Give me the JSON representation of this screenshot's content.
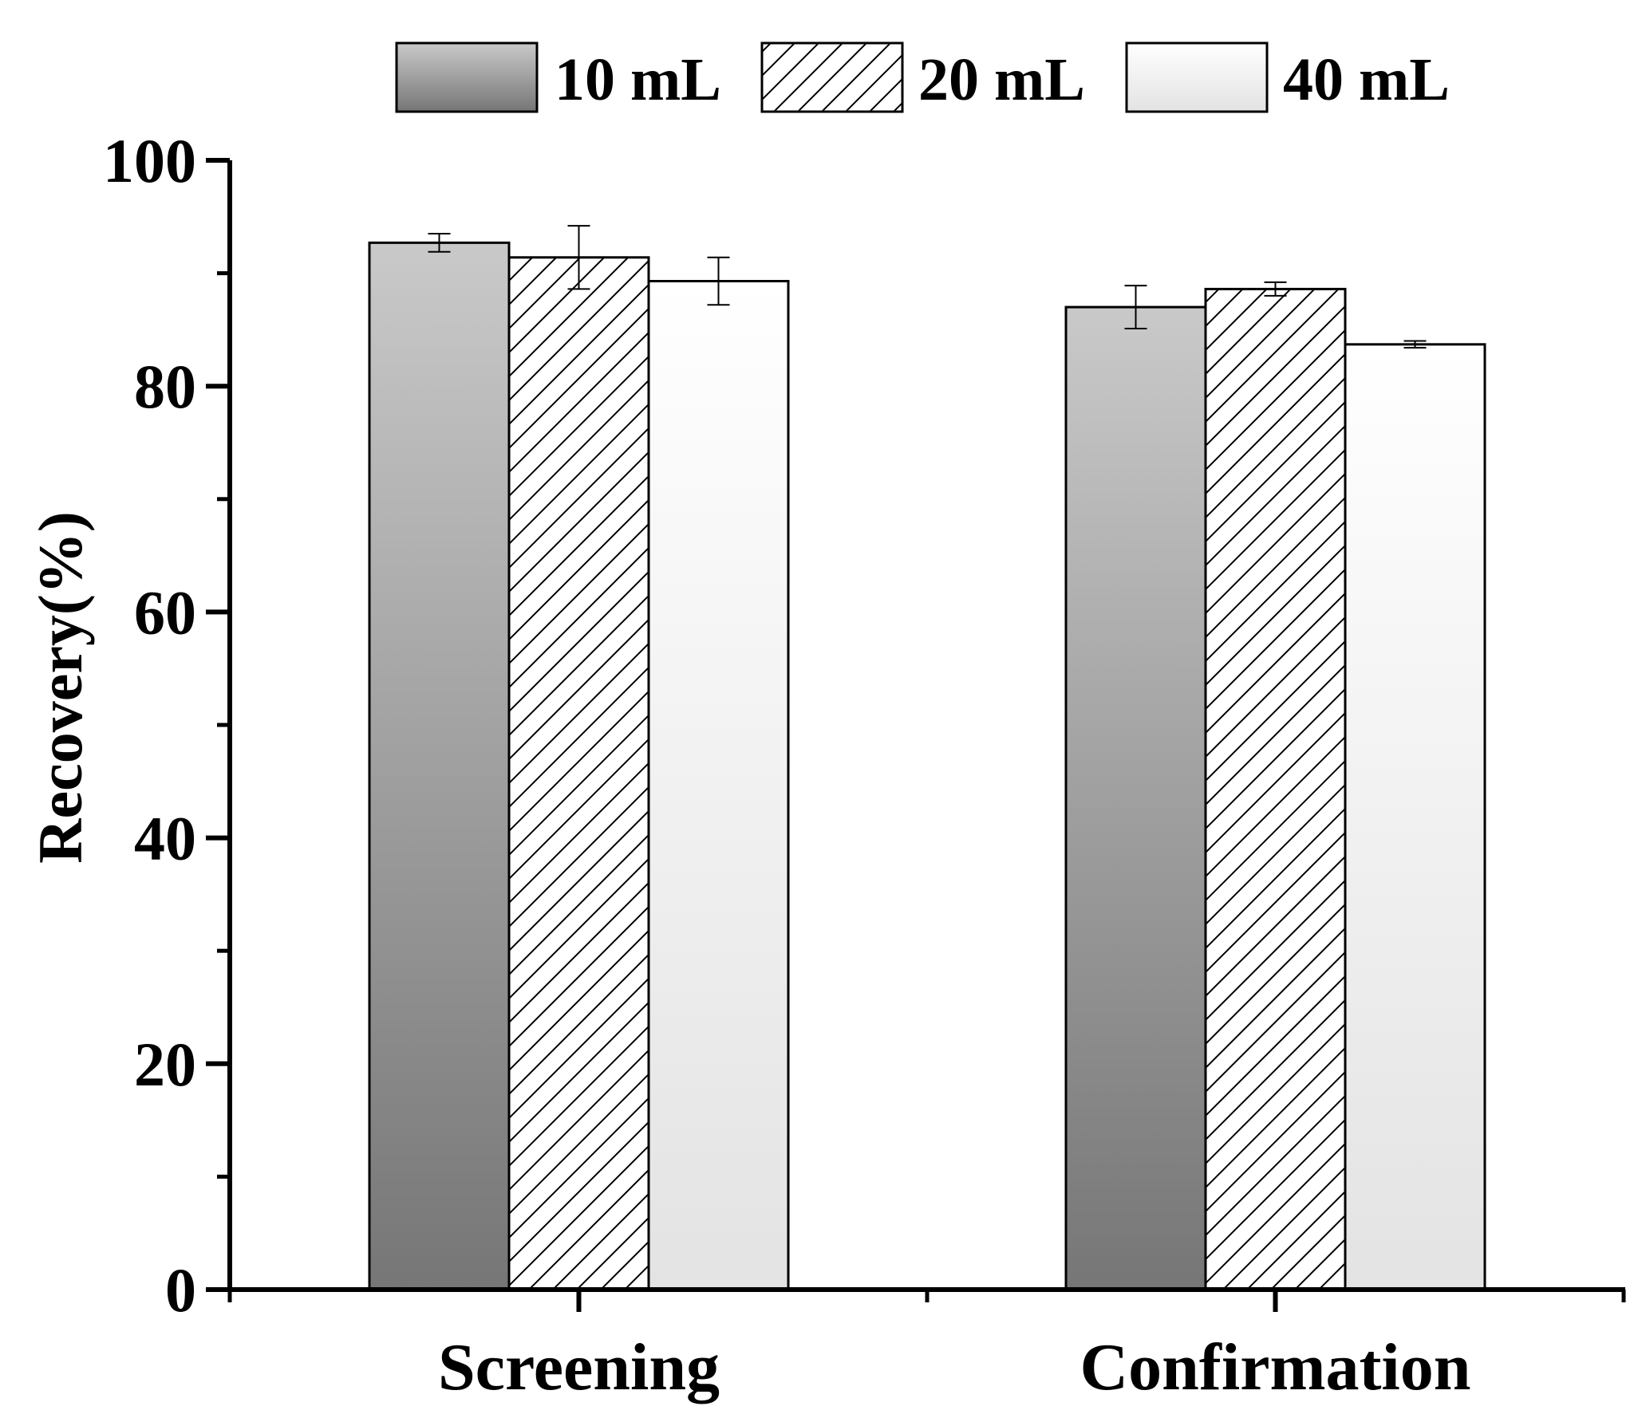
{
  "chart_data": {
    "type": "bar",
    "title": "",
    "xlabel": "",
    "ylabel": "Recovery(%)",
    "ylim": [
      0,
      100
    ],
    "yticks": [
      "0",
      "20",
      "40",
      "60",
      "80",
      "100"
    ],
    "minor_ticks": [
      10,
      30,
      50,
      70,
      90
    ],
    "grid": false,
    "legend_position": "top",
    "categories": [
      "Screening",
      "Confirmation"
    ],
    "series": [
      {
        "name": "10 mL",
        "fill": "gradient-gray",
        "values": [
          92.7,
          87.0
        ],
        "errors": [
          0.8,
          1.9
        ]
      },
      {
        "name": "20 mL",
        "fill": "hatch",
        "values": [
          91.4,
          88.6
        ],
        "errors": [
          2.8,
          0.6
        ]
      },
      {
        "name": "40 mL",
        "fill": "gradient-white",
        "values": [
          89.3,
          83.7
        ],
        "errors": [
          2.1,
          0.3
        ]
      }
    ]
  },
  "colors": {
    "axis": "#000000",
    "gray_top": "#c9c9c9",
    "gray_bottom": "#767676",
    "white_top": "#ffffff",
    "white_bottom": "#e3e3e3",
    "hatch_bg": "#ffffff",
    "hatch_line": "#000000"
  }
}
